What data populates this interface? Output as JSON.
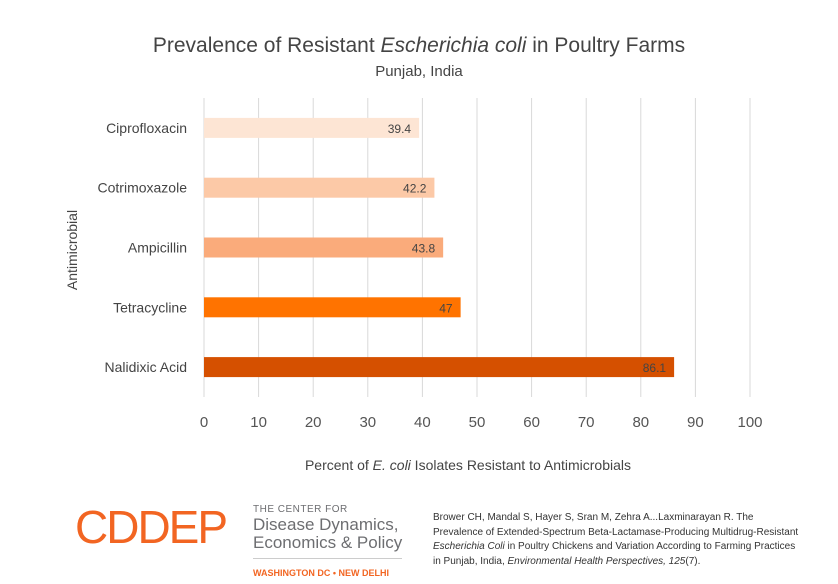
{
  "chart_data": {
    "type": "bar",
    "orientation": "horizontal",
    "title_parts": [
      "Prevalence of Resistant ",
      "Escherichia coli",
      " in Poultry Farms"
    ],
    "subtitle": "Punjab, India",
    "categories": [
      "Ciprofloxacin",
      "Cotrimoxazole",
      "Ampicillin",
      "Tetracycline",
      "Nalidixic Acid"
    ],
    "values": [
      39.4,
      42.2,
      43.8,
      47,
      86.1
    ],
    "data_labels": [
      "39.4",
      "42.2",
      "43.8",
      "47",
      "86.1"
    ],
    "colors": [
      "#FDE5D4",
      "#FCC9A7",
      "#FAAB7B",
      "#FF7300",
      "#D55000"
    ],
    "ylabel": "Antimicrobial",
    "xlabel_parts": [
      "Percent of ",
      "E. coli",
      " Isolates Resistant to Antimicrobials"
    ],
    "xlim": [
      0,
      100
    ],
    "xticks": [
      0,
      10,
      20,
      30,
      40,
      50,
      60,
      70,
      80,
      90,
      100
    ],
    "grid": true
  },
  "footer": {
    "logo_text": "CDDEP",
    "org_line1": "THE CENTER FOR",
    "org_line2": "Disease Dynamics,",
    "org_line3": "Economics & Policy",
    "org_location": "WASHINGTON DC • NEW DELHI",
    "citation_a": "Brower CH, Mandal S, Hayer S, Sran M, Zehra A...Laxminarayan R. The Prevalence of Extended-Spectrum Beta-Lactamase-Producing Multidrug-Resistant ",
    "citation_b": "Escherichia Coli",
    "citation_c": " in Poultry Chickens and Variation According to Farming Practices in Punjab, India, ",
    "citation_d": "Environmental Health Perspectives, 125",
    "citation_e": "(7)."
  }
}
